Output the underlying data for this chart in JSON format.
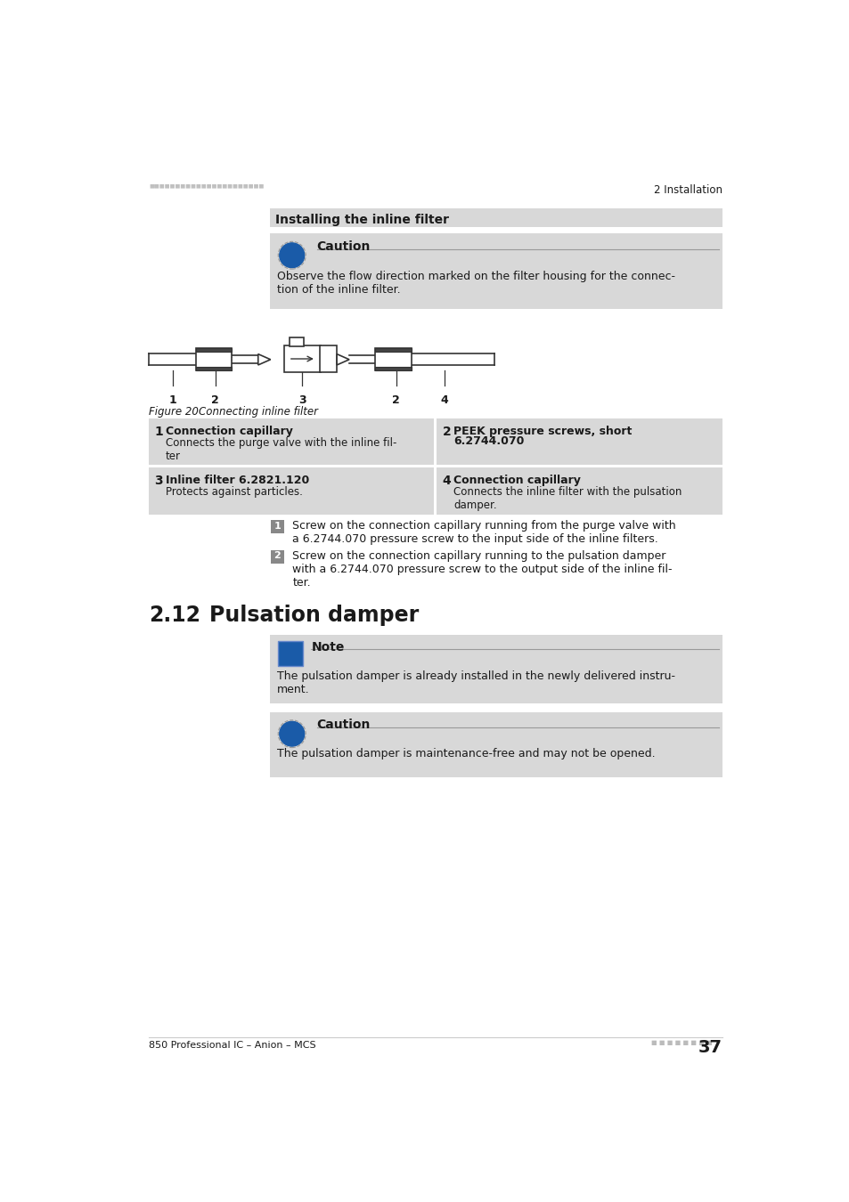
{
  "page_bg": "#ffffff",
  "text_color": "#1a1a1a",
  "header_right_text": "2 Installation",
  "footer_left_text": "850 Professional IC – Anion – MCS",
  "footer_right_text": "37",
  "section_title": "Installing the inline filter",
  "caution_icon_color": "#1a5ba8",
  "caution_title": "Caution",
  "caution_text": "Observe the flow direction marked on the filter housing for the connec-\ntion of the inline filter.",
  "note_icon_color": "#1a5ba8",
  "note_title": "Note",
  "note_text": "The pulsation damper is already installed in the newly delivered instru-\nment.",
  "caution2_title": "Caution",
  "caution2_text": "The pulsation damper is maintenance-free and may not be opened.",
  "figure_caption": "Figure 20",
  "figure_caption2": "Connecting inline filter",
  "table_bg": "#d8d8d8",
  "table_items": [
    {
      "num": "1",
      "title": "Connection capillary",
      "desc": "Connects the purge valve with the inline fil-\nter"
    },
    {
      "num": "2",
      "title": "PEEK pressure screws, short",
      "title2": "6.2744.070",
      "desc": ""
    },
    {
      "num": "3",
      "title": "Inline filter 6.2821.120",
      "desc": "Protects against particles."
    },
    {
      "num": "4",
      "title": "Connection capillary",
      "desc": "Connects the inline filter with the pulsation\ndamper."
    }
  ],
  "step1_text": "Screw on the connection capillary running from the purge valve with\na 6.2744.070 pressure screw to the input side of the inline filters.",
  "step2_text": "Screw on the connection capillary running to the pulsation damper\nwith a 6.2744.070 pressure screw to the output side of the inline fil-\nter.",
  "section2_title": "2.12",
  "section2_title2": "Pulsation damper",
  "box_bg": "#d8d8d8",
  "header_dot_color": "#bbbbbb",
  "footer_dot_color": "#bbbbbb"
}
